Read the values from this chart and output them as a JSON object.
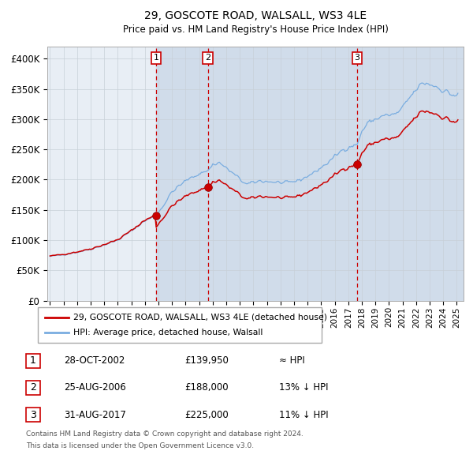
{
  "title": "29, GOSCOTE ROAD, WALSALL, WS3 4LE",
  "subtitle": "Price paid vs. HM Land Registry's House Price Index (HPI)",
  "sale_color": "#cc0000",
  "hpi_color": "#7aade0",
  "background_color": "#ffffff",
  "plot_bg_color": "#e8eef5",
  "grid_color": "#c8d0d8",
  "ylabel_ticks": [
    "£0",
    "£50K",
    "£100K",
    "£150K",
    "£200K",
    "£250K",
    "£300K",
    "£350K",
    "£400K"
  ],
  "ylabel_values": [
    0,
    50000,
    100000,
    150000,
    200000,
    250000,
    300000,
    350000,
    400000
  ],
  "xlim_start": 1994.8,
  "xlim_end": 2025.5,
  "ylim": [
    0,
    420000
  ],
  "hpi_start_year": 1995.0,
  "sales": [
    {
      "label": "1",
      "date_num": 2002.83,
      "price": 139950,
      "date_str": "28-OCT-2002",
      "note": "≈ HPI"
    },
    {
      "label": "2",
      "date_num": 2006.65,
      "price": 188000,
      "date_str": "25-AUG-2006",
      "note": "13% ↓ HPI"
    },
    {
      "label": "3",
      "date_num": 2017.66,
      "price": 225000,
      "date_str": "31-AUG-2017",
      "note": "11% ↓ HPI"
    }
  ],
  "legend_line1": "29, GOSCOTE ROAD, WALSALL, WS3 4LE (detached house)",
  "legend_line2": "HPI: Average price, detached house, Walsall",
  "footnote1": "Contains HM Land Registry data © Crown copyright and database right 2024.",
  "footnote2": "This data is licensed under the Open Government Licence v3.0.",
  "vline_color": "#cc0000",
  "label_box_color": "#cc0000",
  "shaded_color": "#d0dcea"
}
